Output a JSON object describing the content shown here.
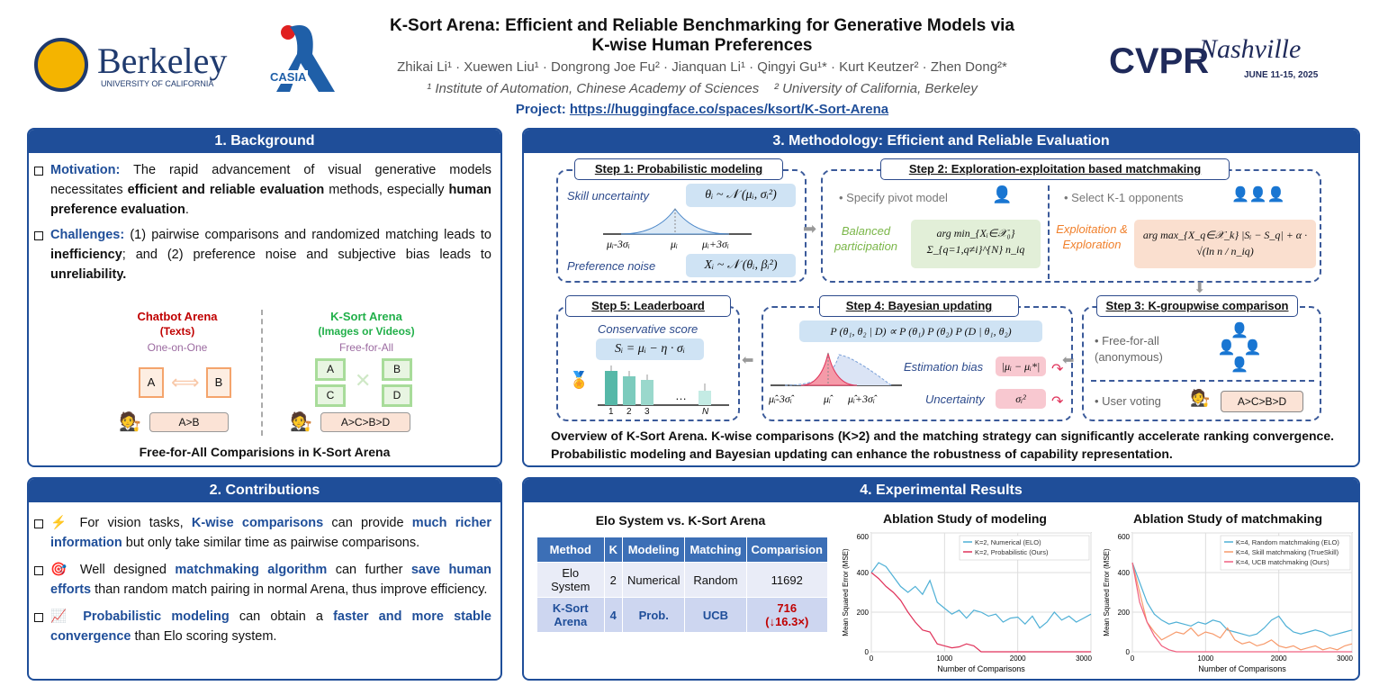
{
  "header": {
    "logo_berkeley": "Berkeley",
    "logo_berkeley_sub": "UNIVERSITY OF CALIFORNIA",
    "logo_casia": "CASIA",
    "logo_cvpr": "CVPR",
    "logo_cvpr_script": "Nashville",
    "logo_cvpr_date": "JUNE 11-15, 2025",
    "title_line1": "K-Sort Arena: Efficient and Reliable Benchmarking for Generative Models via",
    "title_line2": "K-wise Human Preferences",
    "authors": "Zhikai Li¹ · Xuewen Liu¹ · Dongrong Joe Fu² · Jianquan Li¹ · Qingyi Gu¹* · Kurt Keutzer² · Zhen Dong²*",
    "affil1": "¹ Institute of Automation, Chinese Academy of Sciences",
    "affil2": "² University of California, Berkeley",
    "project_label": "Project:",
    "project_url": "https://huggingface.co/spaces/ksort/K-Sort-Arena"
  },
  "background": {
    "title": "1. Background",
    "motivation_label": "Motivation:",
    "motivation_1": " The rapid advancement of visual generative models necessitates ",
    "motivation_b1": "efficient and reliable evaluation",
    "motivation_2": " methods, especially ",
    "motivation_b2": "human preference evaluation",
    "motivation_3": ".",
    "challenges_label": "Challenges:",
    "challenges_1": " (1) pairwise comparisons and randomized matching leads to ",
    "challenges_b1": "inefficiency",
    "challenges_2": "; and (2) preference noise and subjective bias leads to ",
    "challenges_b2": "unreliability.",
    "chatbot_title": "Chatbot Arena",
    "chatbot_sub": "(Texts)",
    "chatbot_mode": "One-on-One",
    "chatbot_a": "A",
    "chatbot_b": "B",
    "chatbot_result": "A>B",
    "ksort_title": "K-Sort Arena",
    "ksort_sub": "(Images or Videos)",
    "ksort_mode": "Free-for-All",
    "img_a": "A",
    "img_b": "B",
    "img_c": "C",
    "img_d": "D",
    "ksort_result": "A>C>B>D",
    "caption": "Free-for-All Comparisions in K-Sort Arena"
  },
  "contributions": {
    "title": "2. Contributions",
    "c1_pre": " For vision tasks, ",
    "c1_b1": "K-wise comparisons",
    "c1_mid": " can provide ",
    "c1_b2": "much richer information",
    "c1_post": " but only take similar time as pairwise comparisons.",
    "c2_pre": " Well designed ",
    "c2_b1": "matchmaking algorithm",
    "c2_mid": " can further ",
    "c2_b2": "save human efforts",
    "c2_post": " than random match pairing in normal Arena, thus improve efficiency.",
    "c3_b1": " Probabilistic modeling",
    "c3_mid": " can obtain a ",
    "c3_b2": "faster and more stable convergence",
    "c3_post": " than Elo scoring system.",
    "icon1": "⚡",
    "icon2": "🎯",
    "icon3": "📈"
  },
  "methodology": {
    "title": "3. Methodology: Efficient and Reliable Evaluation",
    "step1": "Step 1: Probabilistic modeling",
    "skill_unc": "Skill uncertainty",
    "skill_formula": "θᵢ ~ 𝒩 (μᵢ, σᵢ²)",
    "ax_l": "μᵢ-3σᵢ",
    "ax_m": "μᵢ",
    "ax_r": "μᵢ+3σᵢ",
    "pref_noise": "Preference noise",
    "pref_formula": "Xᵢ ~ 𝒩 (θᵢ, βᵢ²)",
    "step2": "Step 2: Exploration-exploitation based matchmaking",
    "pivot": "• Specify pivot model",
    "opponents": "• Select K-1 opponents",
    "balanced": "Balanced participation",
    "balanced_formula": "arg min_{Xᵢ∈𝒳₀} Σ_{q=1,q≠i}^{N} n_iq",
    "explo": "Exploitation & Exploration",
    "explo_formula": "arg max_{X_q∈𝒳_k} |Sᵢ − S_q| + α · √(ln n / n_iq)",
    "step3": "Step 3: K-groupwise comparison",
    "ffa": "• Free-for-all (anonymous)",
    "voting": "• User voting",
    "voting_result": "A>C>B>D",
    "step4": "Step 4: Bayesian updating",
    "bayes_formula": "P (θ₁, θ₂ | D) ∝ P (θ₁) P (θ₂) P (D | θ₁, θ₂)",
    "est_bias": "Estimation bias",
    "est_formula": "|μᵢ − μᵢ*|",
    "uncertainty": "Uncertainty",
    "unc_formula": "σᵢ²",
    "b_ax_l": "μ̂ᵢ-3σ̂ᵢ",
    "b_ax_m": "μ̂ᵢ",
    "b_ax_r": "μ̂ᵢ+3σ̂ᵢ",
    "step5": "Step 5: Leaderboard",
    "cons_score": "Conservative score",
    "cons_formula": "Sᵢ = μᵢ − η · σᵢ",
    "lb_ticks": [
      "1",
      "2",
      "3",
      "N"
    ],
    "lb_dots": "…",
    "caption": "Overview of K-Sort Arena. K-wise comparisons (K>2) and the matching strategy can significantly accelerate ranking convergence. Probabilistic modeling and Bayesian updating can enhance the robustness of capability representation."
  },
  "results": {
    "title": "4. Experimental Results",
    "table_title": "Elo System vs. K-Sort Arena",
    "columns": [
      "Method",
      "K",
      "Modeling",
      "Matching",
      "Comparision"
    ],
    "rows": [
      [
        "Elo System",
        "2",
        "Numerical",
        "Random",
        "11692"
      ],
      [
        "K-Sort Arena",
        "4",
        "Prob.",
        "UCB",
        "716"
      ]
    ],
    "improvement": "(↓16.3×)"
  },
  "colors": {
    "primary": "#1f4e99",
    "numerical": "#4fb0d6",
    "probabilistic": "#e0325a",
    "skill": "#f79a6b",
    "ucb": "#f06080"
  },
  "chart_data": [
    {
      "type": "line",
      "title": "Ablation Study of modeling",
      "xlabel": "Number of Comparisons",
      "ylabel": "Mean Squared Error (MSE)",
      "xlim": [
        0,
        3000
      ],
      "ylim": [
        0,
        600
      ],
      "xticks": [
        0,
        1000,
        2000,
        3000
      ],
      "yticks": [
        0,
        200,
        400,
        600
      ],
      "grid": true,
      "legend": "top-right",
      "x": [
        0,
        100,
        200,
        300,
        400,
        500,
        600,
        700,
        800,
        900,
        1000,
        1100,
        1200,
        1300,
        1400,
        1500,
        1600,
        1700,
        1800,
        1900,
        2000,
        2100,
        2200,
        2300,
        2400,
        2500,
        2600,
        2700,
        2800,
        2900,
        3000
      ],
      "series": [
        {
          "name": "K=2, Numerical    (ELO)",
          "color": "#4fb0d6",
          "values": [
            400,
            450,
            430,
            380,
            330,
            300,
            330,
            290,
            360,
            250,
            220,
            190,
            210,
            170,
            210,
            200,
            180,
            190,
            150,
            170,
            175,
            140,
            180,
            120,
            150,
            200,
            160,
            180,
            150,
            170,
            190
          ]
        },
        {
          "name": "K=2, Probabilistic (Ours)",
          "color": "#e0325a",
          "values": [
            400,
            370,
            330,
            300,
            260,
            200,
            150,
            110,
            100,
            40,
            30,
            20,
            25,
            40,
            30,
            0,
            0,
            0,
            0,
            0,
            0,
            0,
            0,
            0,
            0,
            0,
            0,
            0,
            0,
            0,
            0
          ]
        }
      ]
    },
    {
      "type": "line",
      "title": "Ablation Study of matchmaking",
      "xlabel": "Number of Comparisons",
      "ylabel": "Mean Squared Error (MSE)",
      "xlim": [
        0,
        3000
      ],
      "ylim": [
        0,
        600
      ],
      "xticks": [
        0,
        1000,
        2000,
        3000
      ],
      "yticks": [
        0,
        200,
        400,
        600
      ],
      "grid": true,
      "legend": "top-right",
      "x": [
        0,
        100,
        200,
        300,
        400,
        500,
        600,
        700,
        800,
        900,
        1000,
        1100,
        1200,
        1300,
        1400,
        1500,
        1600,
        1700,
        1800,
        1900,
        2000,
        2100,
        2200,
        2300,
        2400,
        2500,
        2600,
        2700,
        2800,
        2900,
        3000
      ],
      "series": [
        {
          "name": "K=4, Random matchmaking (ELO)",
          "color": "#4fb0d6",
          "values": [
            450,
            350,
            250,
            190,
            160,
            140,
            150,
            140,
            130,
            150,
            140,
            160,
            150,
            110,
            100,
            90,
            80,
            90,
            120,
            160,
            180,
            130,
            100,
            90,
            100,
            110,
            100,
            80,
            90,
            100,
            110
          ]
        },
        {
          "name": "K=4, Skill matchmaking (TrueSkill)",
          "color": "#f79a6b",
          "values": [
            450,
            300,
            150,
            100,
            60,
            80,
            100,
            90,
            120,
            80,
            100,
            90,
            70,
            120,
            60,
            40,
            50,
            30,
            40,
            60,
            30,
            20,
            30,
            10,
            20,
            30,
            10,
            20,
            10,
            30,
            40
          ]
        },
        {
          "name": "K=4, UCB matchmaking (Ours)",
          "color": "#f06080",
          "values": [
            450,
            250,
            150,
            80,
            30,
            10,
            0,
            0,
            0,
            0,
            0,
            0,
            0,
            0,
            0,
            0,
            0,
            0,
            0,
            0,
            0,
            0,
            0,
            0,
            0,
            0,
            0,
            0,
            0,
            0,
            0
          ]
        }
      ]
    }
  ]
}
